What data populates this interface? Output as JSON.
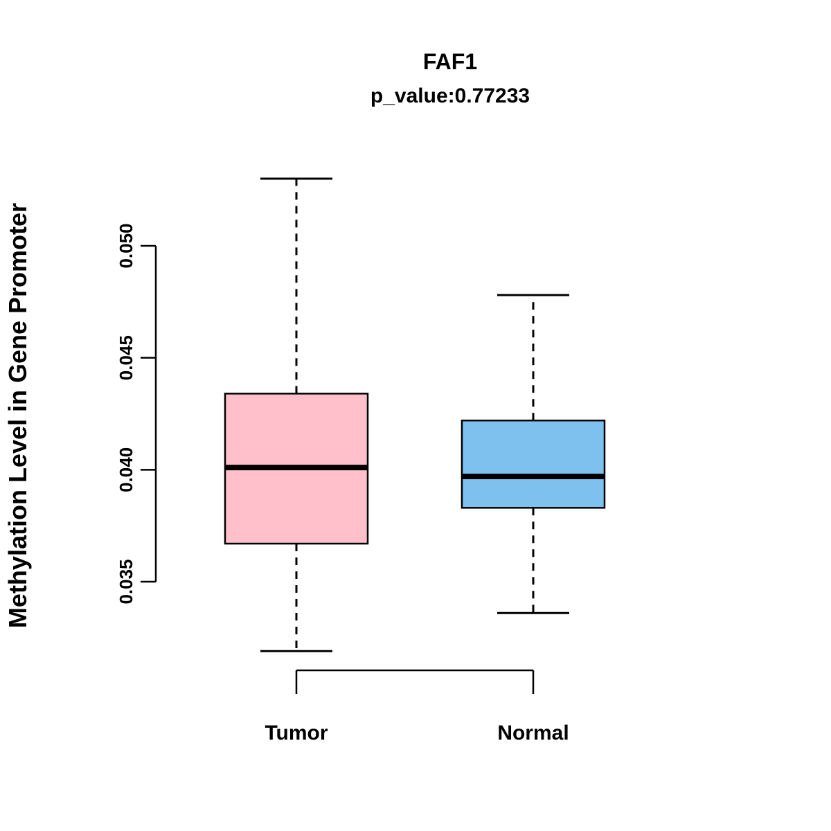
{
  "chart_data": {
    "type": "boxplot",
    "title": "FAF1",
    "subtitle": "p_value:0.77233",
    "ylabel": "Methylation Level in Gene Promoter",
    "xlabel": "",
    "categories": [
      "Tumor",
      "Normal"
    ],
    "yticks": [
      0.035,
      0.04,
      0.045,
      0.05
    ],
    "ylim": [
      0.0305,
      0.0535
    ],
    "grid": false,
    "legend": "none",
    "series": [
      {
        "name": "Tumor",
        "color": "#FFC0CB",
        "whisker_low": 0.0319,
        "q1": 0.0367,
        "median": 0.0401,
        "q3": 0.0434,
        "whisker_high": 0.053
      },
      {
        "name": "Normal",
        "color": "#7EC0EE",
        "whisker_low": 0.0336,
        "q1": 0.0383,
        "median": 0.0397,
        "q3": 0.0422,
        "whisker_high": 0.0478
      }
    ]
  }
}
